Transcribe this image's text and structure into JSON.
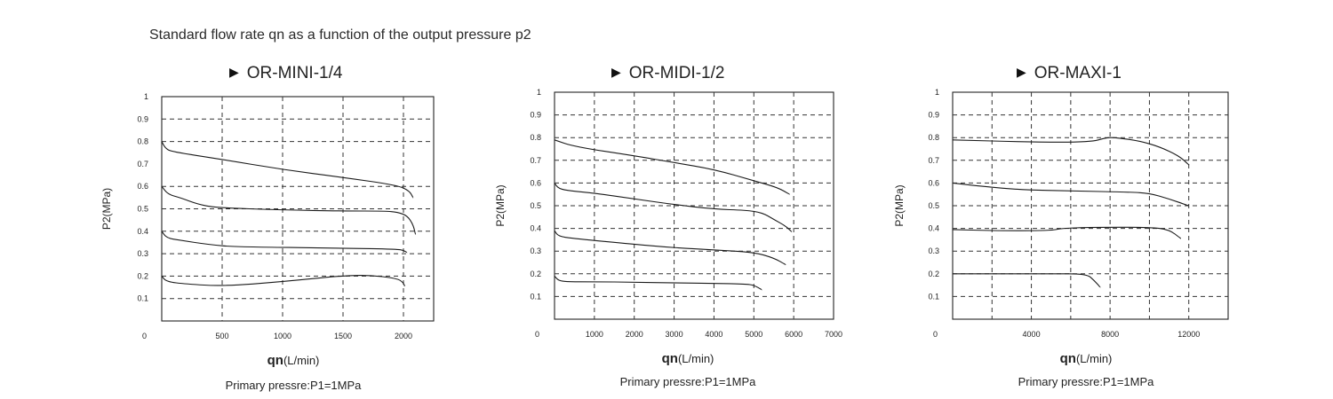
{
  "title": "Standard flow rate qn as a function of the output pressure p2",
  "panel_marker": "▶",
  "chart_data": [
    {
      "type": "line",
      "title": "OR-MINI-1/4",
      "xlabel_main": "qn",
      "xlabel_unit": "(L/min)",
      "ylabel": "P2(MPa)",
      "note": "Primary pressre:P1=1MPa",
      "xlim": [
        0,
        2250
      ],
      "ylim": [
        0,
        1
      ],
      "origin_label": "0",
      "xticks": [
        500,
        1000,
        1500,
        2000
      ],
      "x_gridlines": [
        500,
        1000,
        1500,
        2000
      ],
      "yticks": [
        0.1,
        0.2,
        0.3,
        0.4,
        0.5,
        0.6,
        0.7,
        0.8,
        0.9,
        1
      ],
      "y_gridlines": [
        0.1,
        0.2,
        0.3,
        0.4,
        0.5,
        0.6,
        0.8,
        0.9
      ],
      "grid": true,
      "series": [
        {
          "x": [
            0,
            30,
            80,
            500,
            1000,
            1500,
            1950,
            2050,
            2080
          ],
          "y": [
            0.8,
            0.77,
            0.755,
            0.72,
            0.675,
            0.64,
            0.605,
            0.58,
            0.55
          ]
        },
        {
          "x": [
            0,
            50,
            150,
            300,
            450,
            1000,
            1500,
            1850,
            1950,
            2030,
            2080,
            2100
          ],
          "y": [
            0.6,
            0.565,
            0.55,
            0.52,
            0.505,
            0.495,
            0.49,
            0.49,
            0.485,
            0.47,
            0.43,
            0.385
          ]
        },
        {
          "x": [
            0,
            40,
            150,
            400,
            600,
            1500,
            1950,
            2000,
            2030
          ],
          "y": [
            0.4,
            0.37,
            0.36,
            0.34,
            0.33,
            0.325,
            0.32,
            0.315,
            0.305
          ]
        },
        {
          "x": [
            0,
            40,
            200,
            500,
            1000,
            1450,
            1700,
            1950,
            2000,
            2010
          ],
          "y": [
            0.2,
            0.175,
            0.165,
            0.155,
            0.175,
            0.2,
            0.205,
            0.19,
            0.17,
            0.155
          ]
        }
      ]
    },
    {
      "type": "line",
      "title": "OR-MIDI-1/2",
      "xlabel_main": "qn",
      "xlabel_unit": "(L/min)",
      "ylabel": "P2(MPa)",
      "note": "Primary pressre:P1=1MPa",
      "xlim": [
        0,
        7000
      ],
      "ylim": [
        0,
        1
      ],
      "origin_label": "0",
      "xticks": [
        1000,
        2000,
        3000,
        4000,
        5000,
        6000,
        7000
      ],
      "x_gridlines": [
        1000,
        2000,
        3000,
        4000,
        5000,
        6000
      ],
      "yticks": [
        0.1,
        0.2,
        0.3,
        0.4,
        0.5,
        0.6,
        0.7,
        0.8,
        0.9,
        1
      ],
      "y_gridlines": [
        0.1,
        0.2,
        0.3,
        0.4,
        0.5,
        0.6,
        0.7,
        0.8,
        0.9
      ],
      "grid": true,
      "series": [
        {
          "x": [
            0,
            500,
            2000,
            3000,
            4000,
            5000,
            5600,
            5900
          ],
          "y": [
            0.79,
            0.76,
            0.72,
            0.69,
            0.66,
            0.61,
            0.58,
            0.55
          ]
        },
        {
          "x": [
            0,
            100,
            400,
            1000,
            2000,
            3000,
            4000,
            4800,
            5200,
            5500,
            5800,
            5950
          ],
          "y": [
            0.6,
            0.575,
            0.565,
            0.555,
            0.53,
            0.505,
            0.485,
            0.48,
            0.47,
            0.44,
            0.41,
            0.385
          ]
        },
        {
          "x": [
            0,
            100,
            500,
            2000,
            3000,
            4000,
            5000,
            5500,
            5800
          ],
          "y": [
            0.39,
            0.365,
            0.355,
            0.33,
            0.315,
            0.305,
            0.295,
            0.27,
            0.24
          ]
        },
        {
          "x": [
            0,
            100,
            300,
            1000,
            2000,
            3000,
            4000,
            4800,
            5000,
            5200
          ],
          "y": [
            0.19,
            0.17,
            0.165,
            0.165,
            0.163,
            0.16,
            0.158,
            0.155,
            0.15,
            0.13
          ]
        }
      ]
    },
    {
      "type": "line",
      "title": "OR-MAXI-1",
      "xlabel_main": "qn",
      "xlabel_unit": "(L/min)",
      "ylabel": "P2(MPa)",
      "note": "Primary pressre:P1=1MPa",
      "xlim": [
        0,
        14000
      ],
      "ylim": [
        0,
        1
      ],
      "origin_label": "0",
      "xticks": [
        4000,
        8000,
        12000
      ],
      "x_gridlines": [
        2000,
        4000,
        6000,
        8000,
        10000,
        12000
      ],
      "yticks": [
        0.1,
        0.2,
        0.3,
        0.4,
        0.5,
        0.6,
        0.7,
        0.8,
        0.9,
        1
      ],
      "y_gridlines": [
        0.1,
        0.2,
        0.3,
        0.4,
        0.5,
        0.6,
        0.7,
        0.8,
        0.9
      ],
      "grid": true,
      "series": [
        {
          "x": [
            0,
            4000,
            7000,
            7800,
            8300,
            9500,
            10500,
            11500,
            12000
          ],
          "y": [
            0.79,
            0.78,
            0.78,
            0.8,
            0.8,
            0.785,
            0.76,
            0.72,
            0.68
          ]
        },
        {
          "x": [
            0,
            1500,
            3500,
            6000,
            9000,
            10000,
            11000,
            12000
          ],
          "y": [
            0.6,
            0.585,
            0.57,
            0.565,
            0.56,
            0.555,
            0.53,
            0.5
          ]
        },
        {
          "x": [
            0,
            2000,
            5000,
            5500,
            7000,
            10000,
            11000,
            11600
          ],
          "y": [
            0.395,
            0.39,
            0.39,
            0.4,
            0.405,
            0.405,
            0.395,
            0.355
          ]
        },
        {
          "x": [
            0,
            3000,
            5000,
            6800,
            7200,
            7500
          ],
          "y": [
            0.2,
            0.2,
            0.2,
            0.2,
            0.17,
            0.14
          ]
        }
      ]
    }
  ]
}
